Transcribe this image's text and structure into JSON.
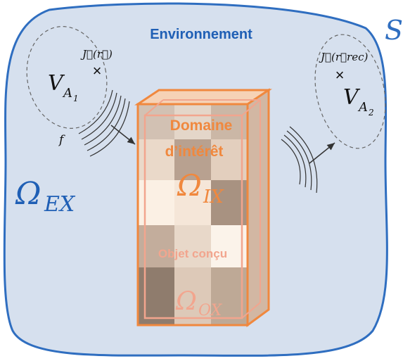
{
  "diagram": {
    "surface_label": "S",
    "environment_label": "Environnement",
    "omega_ex": {
      "symbol": "Ω",
      "subscript": "EX"
    },
    "antenna_1": {
      "current": "J⃗(r⃗)",
      "cross": "×",
      "volume": {
        "base": "V",
        "sub": "A",
        "subsub": "1"
      },
      "frequency": "f"
    },
    "antenna_2": {
      "current": "J⃗(r⃗rec)",
      "cross": "×",
      "volume": {
        "base": "V",
        "sub": "A",
        "subsub": "2"
      }
    },
    "domain": {
      "title_line1": "Domaine",
      "title_line2": "d’intérêt",
      "omega_ix": {
        "symbol": "Ω",
        "subscript": "IX"
      },
      "object_label": "Objet conçu",
      "omega_ox": {
        "symbol": "Ω",
        "subscript": "OX"
      }
    },
    "colors": {
      "environment_fill": "#d6e0ee",
      "environment_stroke": "#2f6ec0",
      "title_blue": "#1f5fb5",
      "orange": "#f0883e",
      "salmon": "#f2a58e",
      "ink": "#111111"
    }
  }
}
